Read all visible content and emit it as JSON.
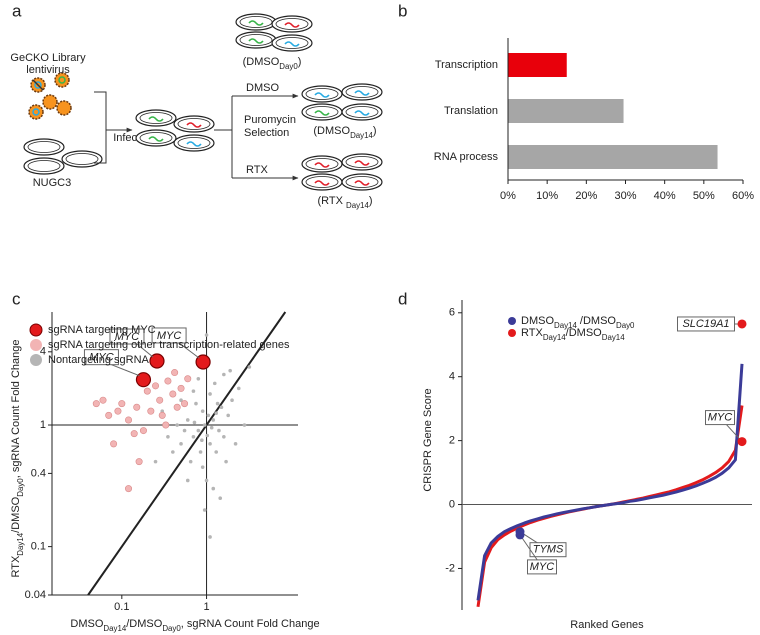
{
  "panel_labels": [
    "a",
    "b",
    "c",
    "d"
  ],
  "diagram": {
    "library": [
      "GeCKO Library",
      "lentivirus"
    ],
    "cells": "NUGC3",
    "infection": "Infection",
    "selection": [
      "Puromycin",
      "Selection"
    ],
    "dmso": "DMSO",
    "rtx": "RTX",
    "day0": [
      "(DMSO",
      "Day0",
      ")"
    ],
    "dmso_day14": [
      "(DMSO",
      "Day14",
      ")"
    ],
    "rtx_day14": [
      "(RTX ",
      "Day14",
      ")"
    ]
  },
  "chart_data": [
    {
      "type": "hbar",
      "categories": [
        "Transcription",
        "Translation",
        "RNA process"
      ],
      "values": [
        15,
        29.5,
        53.5
      ],
      "colors": [
        "#e8000b",
        "#a6a6a6",
        "#a6a6a6"
      ],
      "xlim": [
        0,
        60
      ],
      "xticks": [
        {
          "value": 0,
          "label": "0%"
        },
        {
          "value": 10,
          "label": "10%"
        },
        {
          "value": 20,
          "label": "20%"
        },
        {
          "value": 30,
          "label": "30%"
        },
        {
          "value": 40,
          "label": "40%"
        },
        {
          "value": 50,
          "label": "50%"
        },
        {
          "value": 60,
          "label": "60%"
        }
      ]
    },
    {
      "type": "scatter",
      "log_scale": true,
      "diagonal": true,
      "reference_lines": {
        "x": 1,
        "y": 1
      },
      "x_label": [
        "DMSO",
        "Day14",
        "/DMSO",
        "Day0",
        ", sgRNA Count Fold Change"
      ],
      "y_label": [
        "RTX",
        "Day14",
        "/DMSO",
        "Day0",
        ", sgRNA Count Fold Change"
      ],
      "xlim": [
        0.015,
        12
      ],
      "ylim": [
        0.04,
        8.5
      ],
      "xticks": [
        0.1,
        1
      ],
      "yticks": [
        0.04,
        0.1,
        0.4,
        1,
        4
      ],
      "series": [
        {
          "name": "sgRNA targeting MYC",
          "color": "#e31a1c",
          "x": [
            0.18,
            0.26,
            0.91
          ],
          "values": [
            2.36,
            3.36,
            3.3
          ]
        },
        {
          "name": "sgRNA targeting other transcription-related genes",
          "color": "#f2b4b4",
          "x": [
            0.06,
            0.07,
            0.08,
            0.1,
            0.12,
            0.15,
            0.18,
            0.2,
            0.22,
            0.25,
            0.28,
            0.3,
            0.35,
            0.4,
            0.45,
            0.5,
            0.12,
            0.16,
            0.33,
            0.55,
            0.6,
            0.09,
            0.05,
            0.14,
            0.42
          ],
          "values": [
            1.6,
            1.2,
            0.7,
            1.5,
            1.1,
            1.4,
            0.9,
            1.9,
            1.3,
            2.1,
            1.6,
            1.2,
            2.3,
            1.8,
            1.4,
            2.0,
            0.3,
            0.5,
            1.0,
            1.5,
            2.4,
            1.3,
            1.5,
            0.85,
            2.7
          ]
        },
        {
          "name": "Nontargeting sgRNA",
          "color": "#b5b5b5",
          "x": [
            0.8,
            1.2,
            0.9,
            1.1,
            0.7,
            1.5,
            0.6,
            1.3,
            0.95,
            1.05,
            0.85,
            1.4,
            0.5,
            2.0,
            0.75,
            1.6,
            0.65,
            1.1,
            0.9,
            1.8,
            0.55,
            1.25,
            0.45,
            2.4,
            1.0,
            0.7,
            1.7,
            0.4,
            1.35,
            0.8,
            2.8,
            0.35,
            1.2,
            1.9,
            0.6,
            0.3,
            1.0,
            1.1,
            3.2,
            0.25,
            1.45,
            0.5,
            2.2,
            0.95,
            1.6,
            0.88,
            1.15,
            0.72,
            1.3,
            1.02
          ],
          "values": [
            0.9,
            1.1,
            1.3,
            0.7,
            0.8,
            1.4,
            1.1,
            0.6,
            1.0,
            1.2,
            0.6,
            0.9,
            0.7,
            1.6,
            1.5,
            0.8,
            0.5,
            1.8,
            0.45,
            1.2,
            0.9,
            2.2,
            1.0,
            2.0,
            0.35,
            1.9,
            0.5,
            0.6,
            1.5,
            2.4,
            1.0,
            0.8,
            0.3,
            2.8,
            0.35,
            1.3,
            5.5,
            0.12,
            3.0,
            0.5,
            0.25,
            1.6,
            0.7,
            0.2,
            2.6,
            0.75,
            0.95,
            1.05,
            1.25,
            0.82
          ]
        }
      ],
      "annotations": [
        "MYC",
        "MYC",
        "MYC"
      ]
    },
    {
      "type": "ranked",
      "x_label": "Ranked Genes",
      "y_label": "CRISPR Gene Score",
      "zero_line": true,
      "ylim": [
        -3.3,
        6.4
      ],
      "yticks": [
        -2,
        0,
        2,
        4,
        6
      ],
      "series": [
        {
          "name": [
            "DMSO",
            "Day14",
            " /DMSO",
            "Day0"
          ],
          "color": "#3b3b98",
          "values": [
            -3.0,
            -1.6,
            -1.2,
            -1.0,
            -0.85,
            -0.75,
            -0.66,
            -0.58,
            -0.51,
            -0.45,
            -0.39,
            -0.34,
            -0.29,
            -0.25,
            -0.21,
            -0.17,
            -0.13,
            -0.1,
            -0.06,
            -0.03,
            0.0,
            0.03,
            0.06,
            0.1,
            0.13,
            0.17,
            0.21,
            0.25,
            0.29,
            0.34,
            0.39,
            0.45,
            0.51,
            0.58,
            0.66,
            0.75,
            0.85,
            0.98,
            1.15,
            1.4,
            4.4
          ]
        },
        {
          "name": [
            "RTX",
            "Day14",
            "/DMSO",
            "Day14"
          ],
          "color": "#e31a1c",
          "values": [
            -3.2,
            -1.8,
            -1.35,
            -1.1,
            -0.95,
            -0.83,
            -0.73,
            -0.64,
            -0.56,
            -0.49,
            -0.43,
            -0.37,
            -0.32,
            -0.27,
            -0.22,
            -0.18,
            -0.14,
            -0.1,
            -0.06,
            -0.03,
            0.0,
            0.04,
            0.08,
            0.12,
            0.16,
            0.2,
            0.25,
            0.3,
            0.35,
            0.4,
            0.46,
            0.53,
            0.6,
            0.68,
            0.77,
            0.88,
            1.0,
            1.15,
            1.35,
            1.7,
            3.1
          ]
        }
      ],
      "annotations": [
        {
          "text": "SLC19A1",
          "value": 5.65
        },
        {
          "text": "MYC",
          "value": 1.97
        },
        {
          "text": "TYMS",
          "value": -0.85
        },
        {
          "text": "MYC",
          "value": -0.95
        }
      ]
    }
  ]
}
